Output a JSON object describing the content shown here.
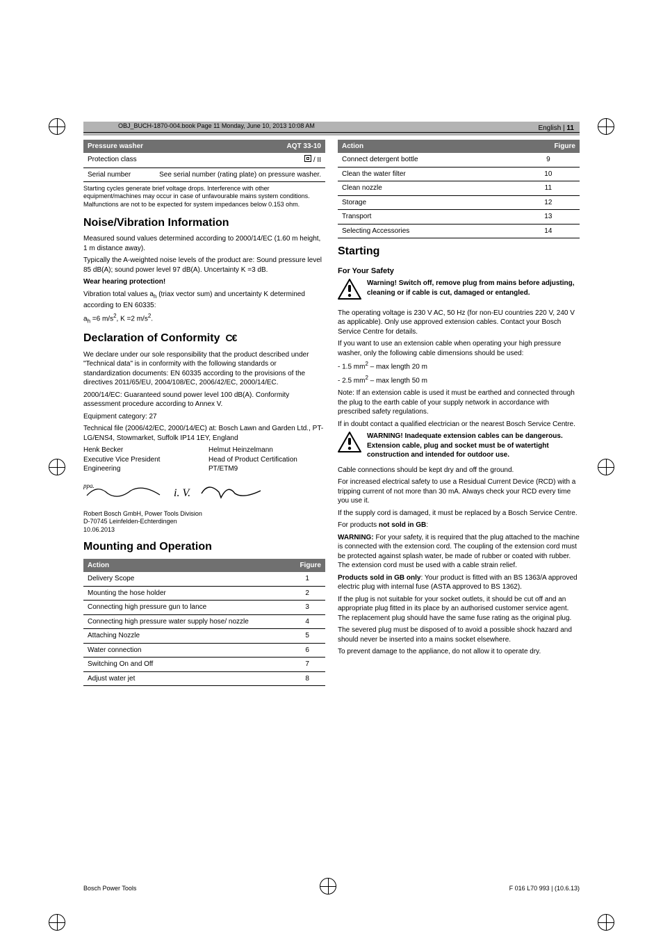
{
  "obj_header": "OBJ_BUCH-1870-004.book  Page 11  Monday, June 10, 2013  10:08 AM",
  "page_label_lang": "English",
  "page_label_num": "11",
  "col_left": {
    "table_pw": {
      "header_l": "Pressure washer",
      "header_r": "AQT 33-10",
      "rows": [
        {
          "l": "Protection class",
          "r_special": "protection"
        },
        {
          "l": "Serial number",
          "r": "See serial number (rating plate) on pressure washer."
        }
      ]
    },
    "fineprint": "Starting cycles generate brief voltage drops. Interference with other equipment/machines may occur in case of unfavourable mains system conditions. Malfunctions are not to be expected for system impedances below 0.153 ohm.",
    "h_noise": "Noise/Vibration Information",
    "noise_p1": "Measured sound values determined according to 2000/14/EC (1.60 m height, 1 m distance away).",
    "noise_p2": "Typically the A-weighted noise levels of the product are: Sound pressure level 85 dB(A); sound power level 97 dB(A). Uncertainty K =3 dB.",
    "noise_b": "Wear hearing protection!",
    "vib_p1_a": "Vibration total values a",
    "vib_p1_b": " (triax vector sum) and uncertainty K determined according to EN 60335:",
    "vib_p2_a": "a",
    "vib_p2_b": " =6 m/s",
    "vib_p2_c": ", K =2 m/s",
    "vib_p2_d": ".",
    "h_decl": "Declaration of Conformity",
    "decl_p1": "We declare under our sole responsibility that the product described under \"Technical data\" is in conformity with the following standards or standardization documents: EN 60335 according to the provisions of the directives 2011/65/EU, 2004/108/EC, 2006/42/EC, 2000/14/EC.",
    "decl_p2": "2000/14/EC: Guaranteed sound power level 100 dB(A). Conformity assessment procedure according to Annex V.",
    "decl_p3": "Equipment category: 27",
    "decl_p4": "Technical file (2006/42/EC, 2000/14/EC) at: Bosch Lawn and Garden Ltd., PT-LG/ENS4, Stowmarket, Suffolk IP14 1EY, England",
    "sign_l1": "Henk Becker",
    "sign_l2": "Executive Vice President",
    "sign_l3": "Engineering",
    "sign_r1": "Helmut Heinzelmann",
    "sign_r2": "Head of Product Certification",
    "sign_r3": "PT/ETM9",
    "sigs": "ppa.                    i. V.",
    "addr1": "Robert Bosch GmbH, Power Tools Division",
    "addr2": "D-70745 Leinfelden-Echterdingen",
    "addr3": "10.06.2013",
    "h_mount": "Mounting and Operation",
    "table_act": {
      "header_l": "Action",
      "header_r": "Figure",
      "rows": [
        {
          "l": "Delivery Scope",
          "r": "1"
        },
        {
          "l": "Mounting the hose holder",
          "r": "2"
        },
        {
          "l": "Connecting high pressure gun to lance",
          "r": "3"
        },
        {
          "l": "Connecting high pressure water supply hose/ nozzle",
          "r": "4"
        },
        {
          "l": "Attaching Nozzle",
          "r": "5"
        },
        {
          "l": "Water connection",
          "r": "6"
        },
        {
          "l": "Switching On and Off",
          "r": "7"
        },
        {
          "l": "Adjust water jet",
          "r": "8"
        }
      ]
    }
  },
  "col_right": {
    "table_act": {
      "header_l": "Action",
      "header_r": "Figure",
      "rows": [
        {
          "l": "Connect detergent bottle",
          "r": "9"
        },
        {
          "l": "Clean the water filter",
          "r": "10"
        },
        {
          "l": "Clean nozzle",
          "r": "11"
        },
        {
          "l": "Storage",
          "r": "12"
        },
        {
          "l": "Transport",
          "r": "13"
        },
        {
          "l": "Selecting Accessories",
          "r": "14"
        }
      ]
    },
    "h_start": "Starting",
    "h_safety": "For Your Safety",
    "warn1": "Warning! Switch off, remove plug from mains before adjusting, cleaning or if cable is cut, damaged or entangled.",
    "p1": "The operating voltage is 230 V AC, 50 Hz (for non-EU countries 220 V, 240 V as applicable). Only use approved extension cables. Contact your Bosch Service Centre for details.",
    "p2": "If you want to use an extension cable when operating your high pressure washer, only the following cable dimensions should be used:",
    "li1a": " - 1.5 mm",
    "li1b": " – max length 20 m",
    "li2a": " - 2.5 mm",
    "li2b": " – max length 50 m",
    "p3": "Note: If an extension cable is used it must be earthed and connected through the plug to the earth cable of your supply network in accordance with prescribed safety regulations.",
    "p4": "If in doubt contact a qualified electrician or the nearest Bosch Service Centre.",
    "warn2": "WARNING! Inadequate extension cables can be dangerous. Extension cable, plug and socket must be of watertight construction and intended for outdoor use.",
    "p5": "Cable connections should be kept dry and off the ground.",
    "p6": "For increased electrical safety to use a Residual Current Device (RCD) with a tripping current of not more than 30 mA. Always check your RCD every time you use it.",
    "p7": "If the supply cord is damaged, it must be replaced by a Bosch Service Centre.",
    "p8a": "For products ",
    "p8b": "not sold in GB",
    "p8c": ":",
    "p9a": "WARNING:",
    "p9b": " For your safety, it is required that the plug attached to the machine is connected with the extension cord. The coupling of the extension cord must be protected against splash water, be made of rubber or coated with rubber. The extension cord must be used with a cable strain relief.",
    "p10a": "Products sold in GB only",
    "p10b": ": Your product is fitted with an BS 1363/A approved electric plug with internal fuse (ASTA approved to BS 1362).",
    "p11": "If the plug is not suitable for your socket outlets, it should be cut off and an appropriate plug fitted in its place by an authorised customer service agent. The replacement plug should have the same fuse rating as the original plug.",
    "p12": "The severed plug must be disposed of to avoid a possible shock hazard and should never be inserted into a mains socket elsewhere.",
    "p13": "To prevent damage to the appliance, do not allow it to operate dry."
  },
  "footer_l": "Bosch Power Tools",
  "footer_r": "F 016 L70 993 | (10.6.13)"
}
